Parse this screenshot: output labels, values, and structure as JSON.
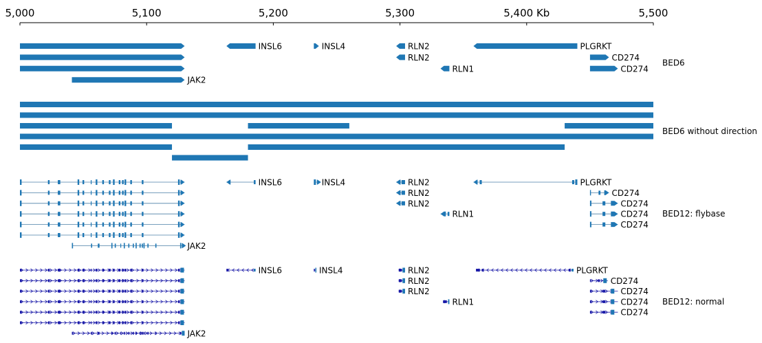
{
  "colors": {
    "feature": "#1f77b4",
    "intron": "#4a7fa6",
    "arrow": "#1a1aa8",
    "text": "#000000"
  },
  "axis": {
    "start_kb": 5000,
    "end_kb": 5500,
    "ticks": [
      {
        "value": 5000,
        "label": "5,000"
      },
      {
        "value": 5100,
        "label": "5,100"
      },
      {
        "value": 5200,
        "label": "5,200"
      },
      {
        "value": 5300,
        "label": "5,300"
      },
      {
        "value": 5400,
        "label": "5,400 Kb"
      },
      {
        "value": 5500,
        "label": "5,500"
      }
    ]
  },
  "tracks": [
    {
      "name": "BED6",
      "style": "bed6",
      "features": [
        {
          "row": 0,
          "start": 5000,
          "end": 5130,
          "strand": "+",
          "label": ""
        },
        {
          "row": 0,
          "start": 5163,
          "end": 5186,
          "strand": "-",
          "label": "INSL6"
        },
        {
          "row": 0,
          "start": 5232,
          "end": 5236,
          "strand": "+",
          "label": "INSL4"
        },
        {
          "row": 0,
          "start": 5297,
          "end": 5304,
          "strand": "-",
          "label": "RLN2"
        },
        {
          "row": 0,
          "start": 5358,
          "end": 5440,
          "strand": "-",
          "label": "PLGRKT"
        },
        {
          "row": 1,
          "start": 5000,
          "end": 5130,
          "strand": "+",
          "label": ""
        },
        {
          "row": 1,
          "start": 5297,
          "end": 5304,
          "strand": "-",
          "label": "RLN2"
        },
        {
          "row": 1,
          "start": 5450,
          "end": 5465,
          "strand": "+",
          "label": "CD274"
        },
        {
          "row": 2,
          "start": 5000,
          "end": 5130,
          "strand": "+",
          "label": ""
        },
        {
          "row": 2,
          "start": 5332,
          "end": 5339,
          "strand": "-",
          "label": "RLN1"
        },
        {
          "row": 2,
          "start": 5450,
          "end": 5472,
          "strand": "+",
          "label": "CD274"
        },
        {
          "row": 3,
          "start": 5041,
          "end": 5130,
          "strand": "+",
          "label": "JAK2"
        }
      ]
    },
    {
      "name": "BED6 without direction",
      "style": "plain",
      "features": [
        {
          "row": 0,
          "start": 5000,
          "end": 5500,
          "strand": ".",
          "label": ""
        },
        {
          "row": 1,
          "start": 5000,
          "end": 5500,
          "strand": ".",
          "label": ""
        },
        {
          "row": 2,
          "start": 5000,
          "end": 5120,
          "strand": ".",
          "label": ""
        },
        {
          "row": 2,
          "start": 5180,
          "end": 5260,
          "strand": ".",
          "label": ""
        },
        {
          "row": 2,
          "start": 5430,
          "end": 5500,
          "strand": ".",
          "label": ""
        },
        {
          "row": 3,
          "start": 5000,
          "end": 5500,
          "strand": ".",
          "label": ""
        },
        {
          "row": 4,
          "start": 5000,
          "end": 5120,
          "strand": ".",
          "label": ""
        },
        {
          "row": 4,
          "start": 5180,
          "end": 5430,
          "strand": ".",
          "label": ""
        },
        {
          "row": 5,
          "start": 5120,
          "end": 5180,
          "strand": ".",
          "label": ""
        }
      ]
    },
    {
      "name": "BED12: flybase",
      "style": "flybase",
      "features": [
        {
          "row": 0,
          "start": 5000,
          "end": 5130,
          "strand": "+",
          "label": "",
          "gene": "JAK2"
        },
        {
          "row": 0,
          "start": 5163,
          "end": 5186,
          "strand": "-",
          "label": "INSL6",
          "gene": "INSL6"
        },
        {
          "row": 0,
          "start": 5232,
          "end": 5236,
          "strand": "+",
          "label": "INSL4",
          "gene": "INSL4"
        },
        {
          "row": 0,
          "start": 5297,
          "end": 5304,
          "strand": "-",
          "label": "RLN2",
          "gene": "RLN2"
        },
        {
          "row": 0,
          "start": 5358,
          "end": 5440,
          "strand": "-",
          "label": "PLGRKT",
          "gene": "PLGRKT"
        },
        {
          "row": 1,
          "start": 5000,
          "end": 5130,
          "strand": "+",
          "label": "",
          "gene": "JAK2"
        },
        {
          "row": 1,
          "start": 5297,
          "end": 5304,
          "strand": "-",
          "label": "RLN2",
          "gene": "RLN2"
        },
        {
          "row": 1,
          "start": 5450,
          "end": 5465,
          "strand": "+",
          "label": "CD274",
          "gene": "CD274"
        },
        {
          "row": 2,
          "start": 5000,
          "end": 5130,
          "strand": "+",
          "label": "",
          "gene": "JAK2"
        },
        {
          "row": 2,
          "start": 5297,
          "end": 5304,
          "strand": "-",
          "label": "RLN2",
          "gene": "RLN2"
        },
        {
          "row": 2,
          "start": 5450,
          "end": 5472,
          "strand": "+",
          "label": "CD274",
          "gene": "CD274"
        },
        {
          "row": 3,
          "start": 5000,
          "end": 5130,
          "strand": "+",
          "label": "",
          "gene": "JAK2"
        },
        {
          "row": 3,
          "start": 5332,
          "end": 5339,
          "strand": "-",
          "label": "RLN1",
          "gene": "RLN1"
        },
        {
          "row": 3,
          "start": 5450,
          "end": 5472,
          "strand": "+",
          "label": "CD274",
          "gene": "CD274"
        },
        {
          "row": 4,
          "start": 5000,
          "end": 5130,
          "strand": "+",
          "label": "",
          "gene": "JAK2"
        },
        {
          "row": 4,
          "start": 5450,
          "end": 5472,
          "strand": "+",
          "label": "CD274",
          "gene": "CD274"
        },
        {
          "row": 5,
          "start": 5000,
          "end": 5130,
          "strand": "+",
          "label": "",
          "gene": "JAK2"
        },
        {
          "row": 6,
          "start": 5041,
          "end": 5130,
          "strand": "+",
          "label": "JAK2",
          "gene": "JAK2"
        }
      ]
    },
    {
      "name": "BED12: normal",
      "style": "normal",
      "features": [
        {
          "row": 0,
          "start": 5000,
          "end": 5130,
          "strand": "+",
          "label": "",
          "gene": "JAK2"
        },
        {
          "row": 0,
          "start": 5163,
          "end": 5186,
          "strand": "-",
          "label": "INSL6",
          "gene": "INSL6"
        },
        {
          "row": 0,
          "start": 5232,
          "end": 5234,
          "strand": "+",
          "label": "INSL4",
          "gene": "INSL4"
        },
        {
          "row": 0,
          "start": 5299,
          "end": 5304,
          "strand": "+",
          "label": "RLN2",
          "gene": "RLN2"
        },
        {
          "row": 0,
          "start": 5360,
          "end": 5437,
          "strand": "-",
          "label": "PLGRKT",
          "gene": "PLGRKT"
        },
        {
          "row": 1,
          "start": 5000,
          "end": 5130,
          "strand": "+",
          "label": "",
          "gene": "JAK2"
        },
        {
          "row": 1,
          "start": 5299,
          "end": 5304,
          "strand": "+",
          "label": "RLN2",
          "gene": "RLN2"
        },
        {
          "row": 1,
          "start": 5450,
          "end": 5464,
          "strand": "+",
          "label": "CD274",
          "gene": "CD274"
        },
        {
          "row": 2,
          "start": 5000,
          "end": 5130,
          "strand": "+",
          "label": "",
          "gene": "JAK2"
        },
        {
          "row": 2,
          "start": 5299,
          "end": 5304,
          "strand": "+",
          "label": "RLN2",
          "gene": "RLN2"
        },
        {
          "row": 2,
          "start": 5450,
          "end": 5472,
          "strand": "+",
          "label": "CD274",
          "gene": "CD274"
        },
        {
          "row": 3,
          "start": 5000,
          "end": 5130,
          "strand": "+",
          "label": "",
          "gene": "JAK2"
        },
        {
          "row": 3,
          "start": 5334,
          "end": 5339,
          "strand": "+",
          "label": "RLN1",
          "gene": "RLN1"
        },
        {
          "row": 3,
          "start": 5450,
          "end": 5472,
          "strand": "+",
          "label": "CD274",
          "gene": "CD274"
        },
        {
          "row": 4,
          "start": 5000,
          "end": 5130,
          "strand": "+",
          "label": "",
          "gene": "JAK2"
        },
        {
          "row": 4,
          "start": 5450,
          "end": 5472,
          "strand": "+",
          "label": "CD274",
          "gene": "CD274"
        },
        {
          "row": 5,
          "start": 5000,
          "end": 5130,
          "strand": "+",
          "label": "",
          "gene": "JAK2"
        },
        {
          "row": 6,
          "start": 5041,
          "end": 5130,
          "strand": "+",
          "label": "JAK2",
          "gene": "JAK2"
        }
      ]
    }
  ]
}
